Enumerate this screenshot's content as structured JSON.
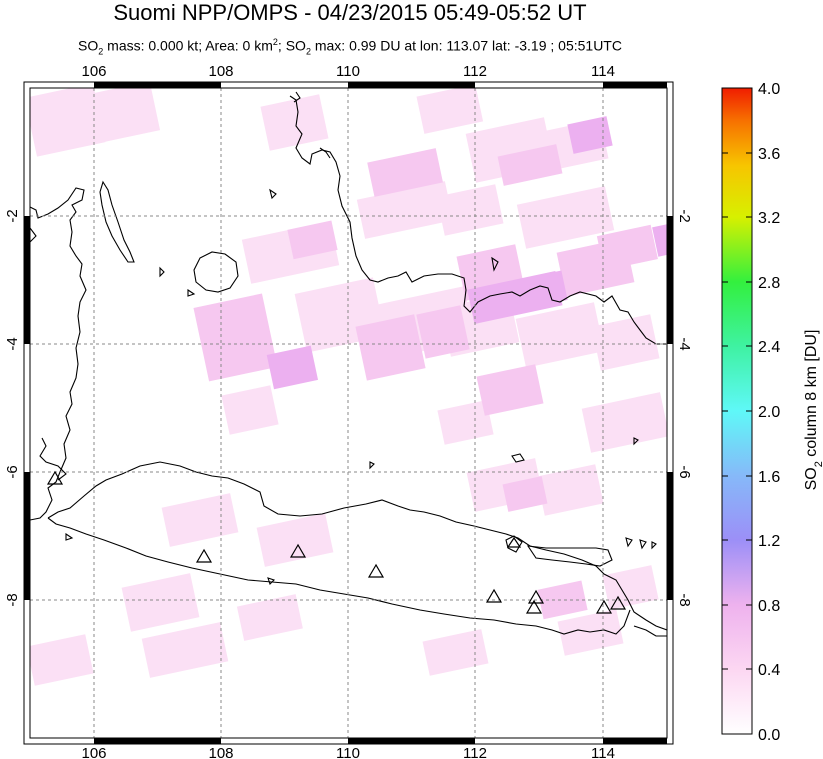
{
  "title": "Suomi NPP/OMPS - 04/23/2015 05:49-05:52 UT",
  "subtitle": {
    "p1": "SO",
    "s1": "2",
    "p2": " mass: 0.000 kt; Area: 0 km",
    "s2": "2",
    "p3": "; SO",
    "s3": "2",
    "p4": " max: 0.99 DU at lon: 113.07 lat: -3.19 ; 05:51UTC"
  },
  "map": {
    "lon_range": [
      105,
      115
    ],
    "lat_range": [
      -10,
      0
    ],
    "lon_ticks": [
      "106",
      "108",
      "110",
      "112",
      "114"
    ],
    "lat_ticks": [
      "-2",
      "-4",
      "-6",
      "-8"
    ],
    "volcano_markers": 13
  },
  "colorbar": {
    "label_main": "SO",
    "label_sub": "2",
    "label_rest": " column 8 km [DU]",
    "ticks": [
      "4.0",
      "3.6",
      "3.2",
      "2.8",
      "2.4",
      "2.0",
      "1.6",
      "1.2",
      "0.8",
      "0.4",
      "0.0"
    ],
    "range": [
      0,
      4
    ]
  }
}
